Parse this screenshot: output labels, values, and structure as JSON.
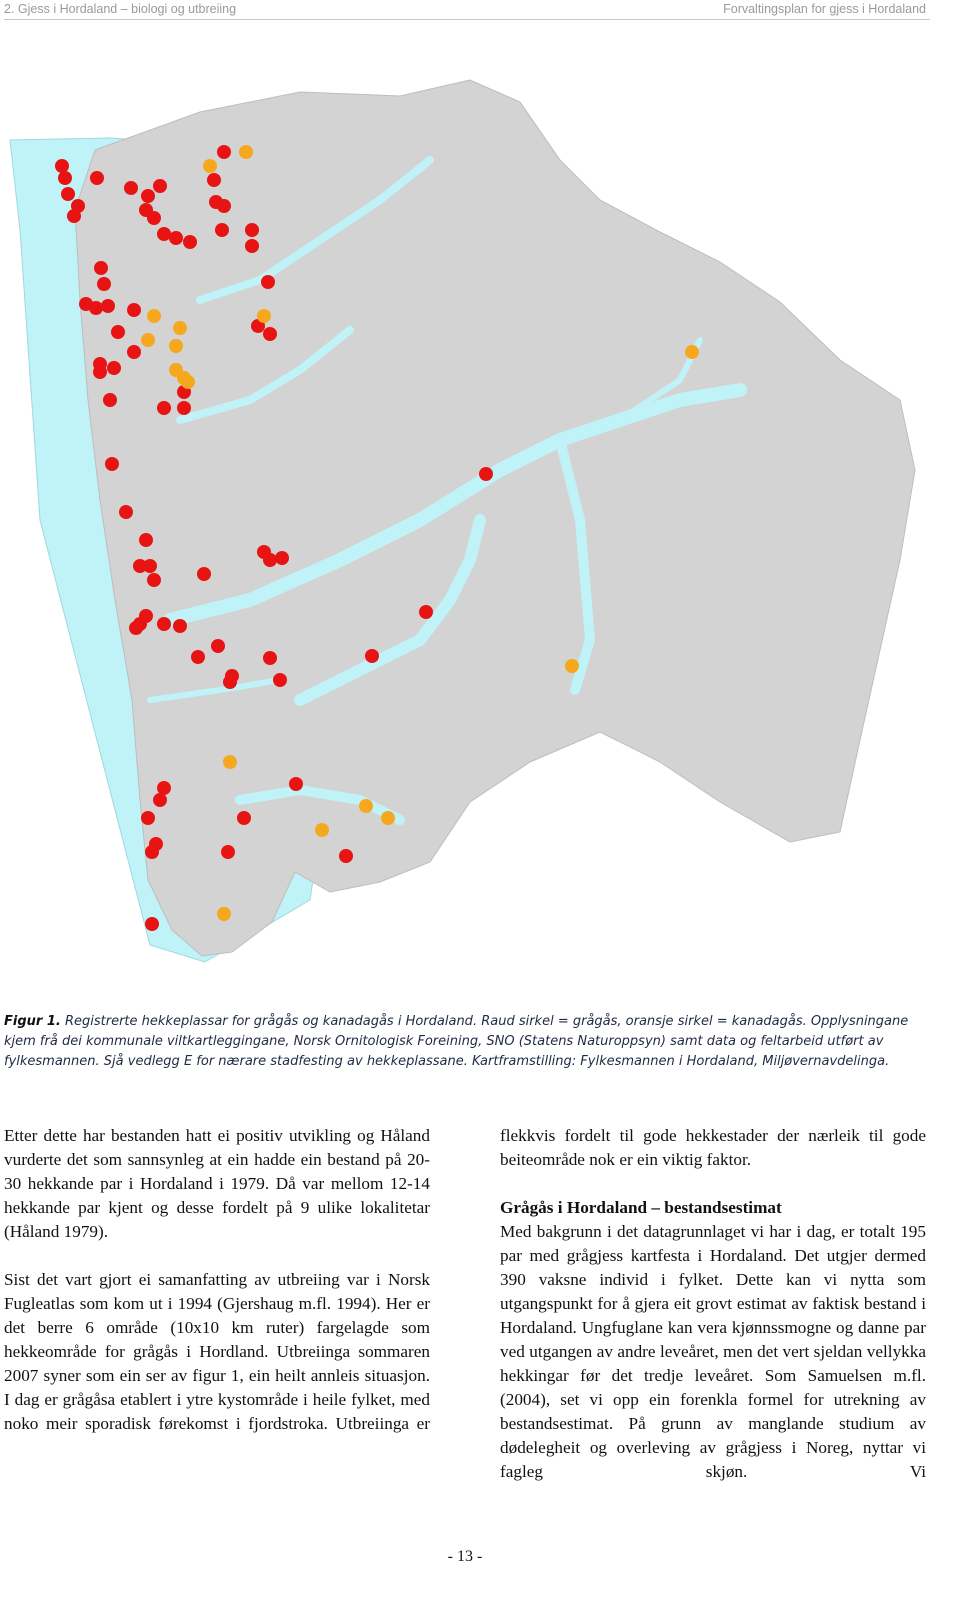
{
  "header": {
    "left": "2. Gjess i Hordaland – biologi og utbreiing",
    "right": "Forvaltingsplan for gjess i Hordaland"
  },
  "figure": {
    "label": "Figur 1.",
    "caption": "Registrerte hekkeplassar for grågås og kanadagås i Hordaland. Raud sirkel = grågås, oransje sirkel = kanadagås. Opplysningane kjem frå dei kommunale viltkartleggingane, Norsk Ornitologisk Foreining, SNO (Statens Naturoppsyn) samt data og feltarbeid utført av fylkesmannen. Sjå vedlegg E for nærare stadfesting av hekkeplassane. Kartframstilling: Fylkesmannen i Hordaland, Miljøvernavdelinga."
  },
  "left_column": {
    "paragraphs": [
      "Etter dette har bestanden hatt ei positiv utvikling og Håland vurderte det som sannsynleg at ein hadde ein bestand på 20-30 hekkande par i Hordaland i 1979. Då var mellom 12-14 hekkande par kjent og desse fordelt på 9 ulike lokalitetar (Håland 1979).",
      "Sist det vart gjort ei samanfatting av utbreiing var i Norsk Fugleatlas som kom ut i 1994 (Gjershaug m.fl. 1994). Her er det berre 6 område (10x10 km ruter) fargelagde som hekkeområde for grågås i Hordland. Utbreiinga sommaren 2007 syner som ein ser av figur 1, ein heilt annleis situasjon. I dag er grågåsa etablert i ytre kystområde i heile fylket, med noko meir sporadisk førekomst i fjordstroka. Utbreiinga er"
    ]
  },
  "right_column": {
    "paragraphs": [
      "flekkvis fordelt til gode hekkestader der nærleik til gode beiteområde nok er ein viktig faktor."
    ],
    "heading": "Grågås i Hordaland – bestandsestimat",
    "body": "Med bakgrunn i det datagrunnlaget vi har i dag, er totalt 195 par med grågjess kartfesta i Hordaland. Det utgjer dermed 390 vaksne individ i fylket. Dette kan vi nytta som utgangspunkt for å gjera eit grovt estimat av faktisk bestand i Hordaland. Ungfuglane kan vera kjønnssmogne og danne par ved utgangen av andre leveåret, men det vert sjeldan vellykka hekkingar før det tredje leveåret.  Som Samuelsen m.fl. (2004), set vi opp ein forenkla formel for utrekning av bestandsestimat. På grunn av manglande studium av dødelegheit og overleving av grågjess i Noreg, nyttar vi fagleg skjøn. Vi"
  },
  "footer": {
    "page_number": "- 13 -"
  }
}
